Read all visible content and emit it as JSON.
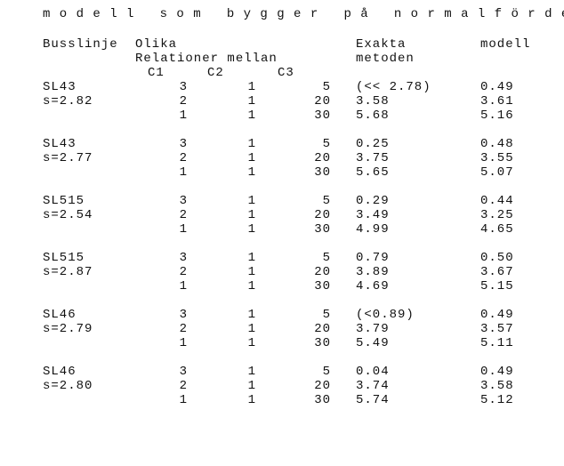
{
  "text_color": "#111111",
  "background_color": "#ffffff",
  "font_family": "Courier New",
  "font_size_pt": 11,
  "top_fragment": "m o d e l l   s o m   b y g g e r   p å   n o r m a l f ö r d e l n i n g s a n t a g a n d e t .",
  "headers": {
    "bus": "Busslinje",
    "olika": "Olika",
    "rel": "Relationer mellan",
    "c1": "C1",
    "c2": "C2",
    "c3": "C3",
    "exakta": "Exakta",
    "metoden": "metoden",
    "modell": "modell"
  },
  "groups": [
    {
      "line": "SL43",
      "s": "s=2.82",
      "rows": [
        {
          "c1": "3",
          "c2": "1",
          "c3": "5",
          "exakt": "(<< 2.78)",
          "model": "0.49"
        },
        {
          "c1": "2",
          "c2": "1",
          "c3": "20",
          "exakt": "3.58",
          "model": "3.61"
        },
        {
          "c1": "1",
          "c2": "1",
          "c3": "30",
          "exakt": "5.68",
          "model": "5.16"
        }
      ]
    },
    {
      "line": "SL43",
      "s": "s=2.77",
      "rows": [
        {
          "c1": "3",
          "c2": "1",
          "c3": "5",
          "exakt": "0.25",
          "model": "0.48"
        },
        {
          "c1": "2",
          "c2": "1",
          "c3": "20",
          "exakt": "3.75",
          "model": "3.55"
        },
        {
          "c1": "1",
          "c2": "1",
          "c3": "30",
          "exakt": "5.65",
          "model": "5.07"
        }
      ]
    },
    {
      "line": "SL515",
      "s": "s=2.54",
      "rows": [
        {
          "c1": "3",
          "c2": "1",
          "c3": "5",
          "exakt": "0.29",
          "model": "0.44"
        },
        {
          "c1": "2",
          "c2": "1",
          "c3": "20",
          "exakt": "3.49",
          "model": "3.25"
        },
        {
          "c1": "1",
          "c2": "1",
          "c3": "30",
          "exakt": "4.99",
          "model": "4.65"
        }
      ]
    },
    {
      "line": "SL515",
      "s": "s=2.87",
      "rows": [
        {
          "c1": "3",
          "c2": "1",
          "c3": "5",
          "exakt": "0.79",
          "model": "0.50"
        },
        {
          "c1": "2",
          "c2": "1",
          "c3": "20",
          "exakt": "3.89",
          "model": "3.67"
        },
        {
          "c1": "1",
          "c2": "1",
          "c3": "30",
          "exakt": "4.69",
          "model": "5.15"
        }
      ]
    },
    {
      "line": "SL46",
      "s": "s=2.79",
      "rows": [
        {
          "c1": "3",
          "c2": "1",
          "c3": "5",
          "exakt": "(<0.89)",
          "model": "0.49"
        },
        {
          "c1": "2",
          "c2": "1",
          "c3": "20",
          "exakt": "3.79",
          "model": "3.57"
        },
        {
          "c1": "1",
          "c2": "1",
          "c3": "30",
          "exakt": "5.49",
          "model": "5.11"
        }
      ]
    },
    {
      "line": "SL46",
      "s": "s=2.80",
      "rows": [
        {
          "c1": "3",
          "c2": "1",
          "c3": "5",
          "exakt": "0.04",
          "model": "0.49"
        },
        {
          "c1": "2",
          "c2": "1",
          "c3": "20",
          "exakt": "3.74",
          "model": "3.58"
        },
        {
          "c1": "1",
          "c2": "1",
          "c3": "30",
          "exakt": "5.74",
          "model": "5.12"
        }
      ]
    }
  ]
}
